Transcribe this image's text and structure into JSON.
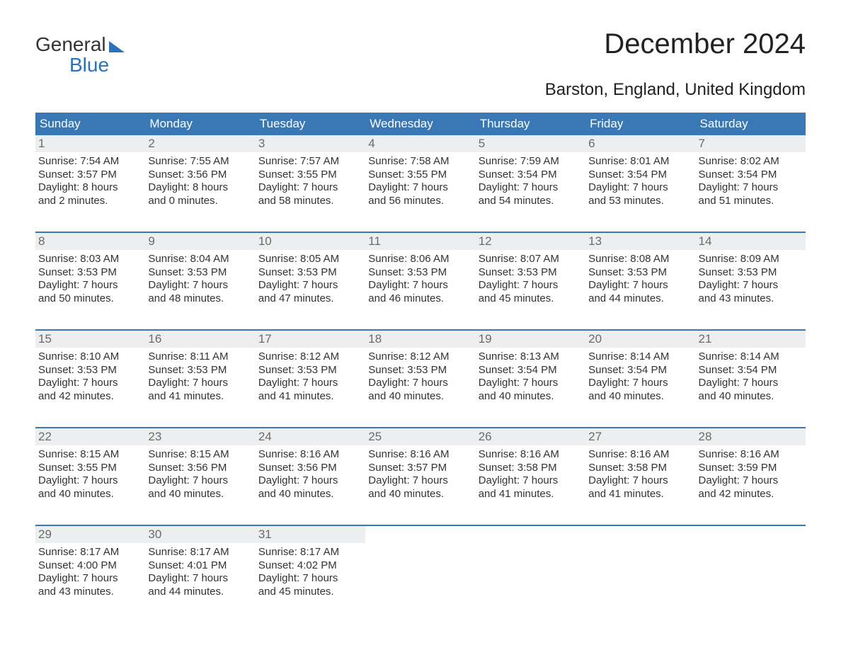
{
  "brand": {
    "part1": "General",
    "part2": "Blue"
  },
  "title": "December 2024",
  "subtitle": "Barston, England, United Kingdom",
  "colors": {
    "header_bg": "#3a78b5",
    "header_text": "#ffffff",
    "daynum_bg": "#eceeef",
    "daynum_text": "#6b6b6b",
    "body_text": "#333333",
    "accent": "#2b72b8",
    "page_bg": "#ffffff"
  },
  "typography": {
    "title_fontsize": 40,
    "subtitle_fontsize": 24,
    "header_fontsize": 17,
    "cell_fontsize": 15,
    "logo_fontsize": 28
  },
  "day_headers": [
    "Sunday",
    "Monday",
    "Tuesday",
    "Wednesday",
    "Thursday",
    "Friday",
    "Saturday"
  ],
  "weeks": [
    [
      {
        "n": "1",
        "sr": "Sunrise: 7:54 AM",
        "ss": "Sunset: 3:57 PM",
        "d1": "Daylight: 8 hours",
        "d2": "and 2 minutes."
      },
      {
        "n": "2",
        "sr": "Sunrise: 7:55 AM",
        "ss": "Sunset: 3:56 PM",
        "d1": "Daylight: 8 hours",
        "d2": "and 0 minutes."
      },
      {
        "n": "3",
        "sr": "Sunrise: 7:57 AM",
        "ss": "Sunset: 3:55 PM",
        "d1": "Daylight: 7 hours",
        "d2": "and 58 minutes."
      },
      {
        "n": "4",
        "sr": "Sunrise: 7:58 AM",
        "ss": "Sunset: 3:55 PM",
        "d1": "Daylight: 7 hours",
        "d2": "and 56 minutes."
      },
      {
        "n": "5",
        "sr": "Sunrise: 7:59 AM",
        "ss": "Sunset: 3:54 PM",
        "d1": "Daylight: 7 hours",
        "d2": "and 54 minutes."
      },
      {
        "n": "6",
        "sr": "Sunrise: 8:01 AM",
        "ss": "Sunset: 3:54 PM",
        "d1": "Daylight: 7 hours",
        "d2": "and 53 minutes."
      },
      {
        "n": "7",
        "sr": "Sunrise: 8:02 AM",
        "ss": "Sunset: 3:54 PM",
        "d1": "Daylight: 7 hours",
        "d2": "and 51 minutes."
      }
    ],
    [
      {
        "n": "8",
        "sr": "Sunrise: 8:03 AM",
        "ss": "Sunset: 3:53 PM",
        "d1": "Daylight: 7 hours",
        "d2": "and 50 minutes."
      },
      {
        "n": "9",
        "sr": "Sunrise: 8:04 AM",
        "ss": "Sunset: 3:53 PM",
        "d1": "Daylight: 7 hours",
        "d2": "and 48 minutes."
      },
      {
        "n": "10",
        "sr": "Sunrise: 8:05 AM",
        "ss": "Sunset: 3:53 PM",
        "d1": "Daylight: 7 hours",
        "d2": "and 47 minutes."
      },
      {
        "n": "11",
        "sr": "Sunrise: 8:06 AM",
        "ss": "Sunset: 3:53 PM",
        "d1": "Daylight: 7 hours",
        "d2": "and 46 minutes."
      },
      {
        "n": "12",
        "sr": "Sunrise: 8:07 AM",
        "ss": "Sunset: 3:53 PM",
        "d1": "Daylight: 7 hours",
        "d2": "and 45 minutes."
      },
      {
        "n": "13",
        "sr": "Sunrise: 8:08 AM",
        "ss": "Sunset: 3:53 PM",
        "d1": "Daylight: 7 hours",
        "d2": "and 44 minutes."
      },
      {
        "n": "14",
        "sr": "Sunrise: 8:09 AM",
        "ss": "Sunset: 3:53 PM",
        "d1": "Daylight: 7 hours",
        "d2": "and 43 minutes."
      }
    ],
    [
      {
        "n": "15",
        "sr": "Sunrise: 8:10 AM",
        "ss": "Sunset: 3:53 PM",
        "d1": "Daylight: 7 hours",
        "d2": "and 42 minutes."
      },
      {
        "n": "16",
        "sr": "Sunrise: 8:11 AM",
        "ss": "Sunset: 3:53 PM",
        "d1": "Daylight: 7 hours",
        "d2": "and 41 minutes."
      },
      {
        "n": "17",
        "sr": "Sunrise: 8:12 AM",
        "ss": "Sunset: 3:53 PM",
        "d1": "Daylight: 7 hours",
        "d2": "and 41 minutes."
      },
      {
        "n": "18",
        "sr": "Sunrise: 8:12 AM",
        "ss": "Sunset: 3:53 PM",
        "d1": "Daylight: 7 hours",
        "d2": "and 40 minutes."
      },
      {
        "n": "19",
        "sr": "Sunrise: 8:13 AM",
        "ss": "Sunset: 3:54 PM",
        "d1": "Daylight: 7 hours",
        "d2": "and 40 minutes."
      },
      {
        "n": "20",
        "sr": "Sunrise: 8:14 AM",
        "ss": "Sunset: 3:54 PM",
        "d1": "Daylight: 7 hours",
        "d2": "and 40 minutes."
      },
      {
        "n": "21",
        "sr": "Sunrise: 8:14 AM",
        "ss": "Sunset: 3:54 PM",
        "d1": "Daylight: 7 hours",
        "d2": "and 40 minutes."
      }
    ],
    [
      {
        "n": "22",
        "sr": "Sunrise: 8:15 AM",
        "ss": "Sunset: 3:55 PM",
        "d1": "Daylight: 7 hours",
        "d2": "and 40 minutes."
      },
      {
        "n": "23",
        "sr": "Sunrise: 8:15 AM",
        "ss": "Sunset: 3:56 PM",
        "d1": "Daylight: 7 hours",
        "d2": "and 40 minutes."
      },
      {
        "n": "24",
        "sr": "Sunrise: 8:16 AM",
        "ss": "Sunset: 3:56 PM",
        "d1": "Daylight: 7 hours",
        "d2": "and 40 minutes."
      },
      {
        "n": "25",
        "sr": "Sunrise: 8:16 AM",
        "ss": "Sunset: 3:57 PM",
        "d1": "Daylight: 7 hours",
        "d2": "and 40 minutes."
      },
      {
        "n": "26",
        "sr": "Sunrise: 8:16 AM",
        "ss": "Sunset: 3:58 PM",
        "d1": "Daylight: 7 hours",
        "d2": "and 41 minutes."
      },
      {
        "n": "27",
        "sr": "Sunrise: 8:16 AM",
        "ss": "Sunset: 3:58 PM",
        "d1": "Daylight: 7 hours",
        "d2": "and 41 minutes."
      },
      {
        "n": "28",
        "sr": "Sunrise: 8:16 AM",
        "ss": "Sunset: 3:59 PM",
        "d1": "Daylight: 7 hours",
        "d2": "and 42 minutes."
      }
    ],
    [
      {
        "n": "29",
        "sr": "Sunrise: 8:17 AM",
        "ss": "Sunset: 4:00 PM",
        "d1": "Daylight: 7 hours",
        "d2": "and 43 minutes."
      },
      {
        "n": "30",
        "sr": "Sunrise: 8:17 AM",
        "ss": "Sunset: 4:01 PM",
        "d1": "Daylight: 7 hours",
        "d2": "and 44 minutes."
      },
      {
        "n": "31",
        "sr": "Sunrise: 8:17 AM",
        "ss": "Sunset: 4:02 PM",
        "d1": "Daylight: 7 hours",
        "d2": "and 45 minutes."
      },
      {
        "n": "",
        "sr": "",
        "ss": "",
        "d1": "",
        "d2": ""
      },
      {
        "n": "",
        "sr": "",
        "ss": "",
        "d1": "",
        "d2": ""
      },
      {
        "n": "",
        "sr": "",
        "ss": "",
        "d1": "",
        "d2": ""
      },
      {
        "n": "",
        "sr": "",
        "ss": "",
        "d1": "",
        "d2": ""
      }
    ]
  ]
}
